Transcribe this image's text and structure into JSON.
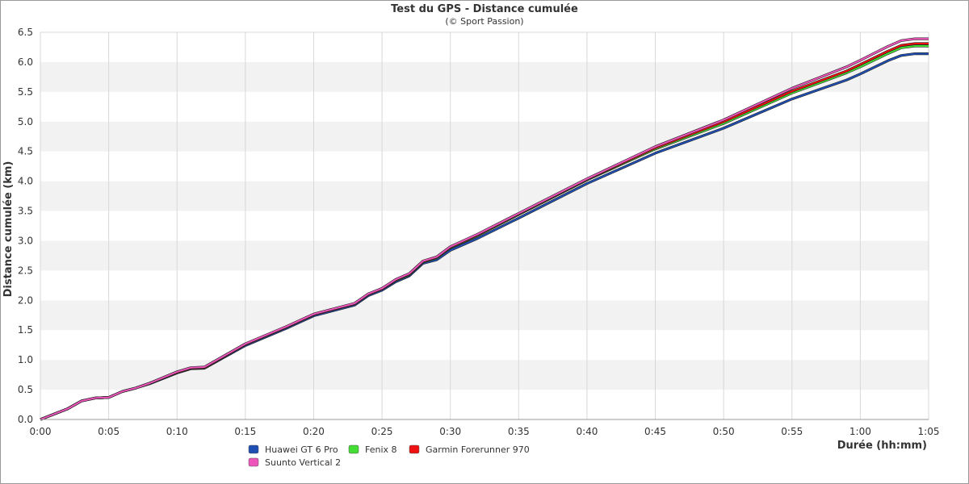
{
  "chart_data": {
    "type": "line",
    "title": "Test du GPS - Distance cumulée",
    "subtitle": "(© Sport Passion)",
    "xlabel": "Durée (hh:mm)",
    "ylabel": "Distance cumulée (km)",
    "xlim": [
      "0:00",
      "1:05"
    ],
    "ylim": [
      0,
      6.5
    ],
    "x_ticks": [
      "0:00",
      "0:05",
      "0:10",
      "0:15",
      "0:20",
      "0:25",
      "0:30",
      "0:35",
      "0:40",
      "0:45",
      "0:50",
      "0:55",
      "1:00",
      "1:05"
    ],
    "y_ticks": [
      "0.0",
      "0.5",
      "1.0",
      "1.5",
      "2.0",
      "2.5",
      "3.0",
      "3.5",
      "4.0",
      "4.5",
      "5.0",
      "5.5",
      "6.0",
      "6.5"
    ],
    "grid": "vertical lines, alternating horizontal bands",
    "legend_position": "bottom-left",
    "x": [
      "0:00",
      "0:02",
      "0:03",
      "0:04",
      "0:05",
      "0:06",
      "0:07",
      "0:08",
      "0:10",
      "0:11",
      "0:12",
      "0:15",
      "0:18",
      "0:20",
      "0:23",
      "0:24",
      "0:25",
      "0:26",
      "0:27",
      "0:28",
      "0:29",
      "0:30",
      "0:32",
      "0:35",
      "0:40",
      "0:45",
      "0:50",
      "0:55",
      "0:59",
      "1:00",
      "1:02",
      "1:03",
      "1:04",
      "1:05"
    ],
    "series": [
      {
        "name": "Huawei GT 6 Pro",
        "color": "#1f4fb4",
        "values": [
          0,
          0.18,
          0.31,
          0.36,
          0.37,
          0.47,
          0.53,
          0.6,
          0.78,
          0.85,
          0.86,
          1.24,
          1.53,
          1.74,
          1.92,
          2.08,
          2.17,
          2.31,
          2.41,
          2.62,
          2.68,
          2.84,
          3.04,
          3.38,
          3.96,
          4.47,
          4.89,
          5.38,
          5.7,
          5.8,
          6.02,
          6.11,
          6.14,
          6.14
        ]
      },
      {
        "name": "Fenix 8",
        "color": "#44dd33",
        "values": [
          0,
          0.18,
          0.31,
          0.36,
          0.37,
          0.47,
          0.53,
          0.61,
          0.79,
          0.86,
          0.87,
          1.26,
          1.55,
          1.76,
          1.94,
          2.1,
          2.19,
          2.33,
          2.43,
          2.64,
          2.71,
          2.88,
          3.09,
          3.44,
          4.02,
          4.54,
          4.97,
          5.48,
          5.82,
          5.92,
          6.14,
          6.24,
          6.27,
          6.27
        ]
      },
      {
        "name": "Garmin Forerunner 970",
        "color": "#ee1111",
        "values": [
          0,
          0.18,
          0.31,
          0.36,
          0.37,
          0.47,
          0.53,
          0.61,
          0.79,
          0.86,
          0.87,
          1.26,
          1.55,
          1.76,
          1.94,
          2.1,
          2.19,
          2.34,
          2.44,
          2.65,
          2.72,
          2.89,
          3.1,
          3.45,
          4.03,
          4.56,
          5.0,
          5.51,
          5.85,
          5.96,
          6.18,
          6.28,
          6.31,
          6.31
        ]
      },
      {
        "name": "Suunto Vertical 2",
        "color": "#ee55bb",
        "values": [
          0,
          0.18,
          0.31,
          0.36,
          0.37,
          0.47,
          0.53,
          0.61,
          0.8,
          0.87,
          0.88,
          1.27,
          1.56,
          1.77,
          1.95,
          2.11,
          2.2,
          2.35,
          2.45,
          2.66,
          2.73,
          2.9,
          3.11,
          3.46,
          4.04,
          4.58,
          5.03,
          5.56,
          5.92,
          6.03,
          6.26,
          6.36,
          6.39,
          6.39
        ]
      }
    ]
  }
}
